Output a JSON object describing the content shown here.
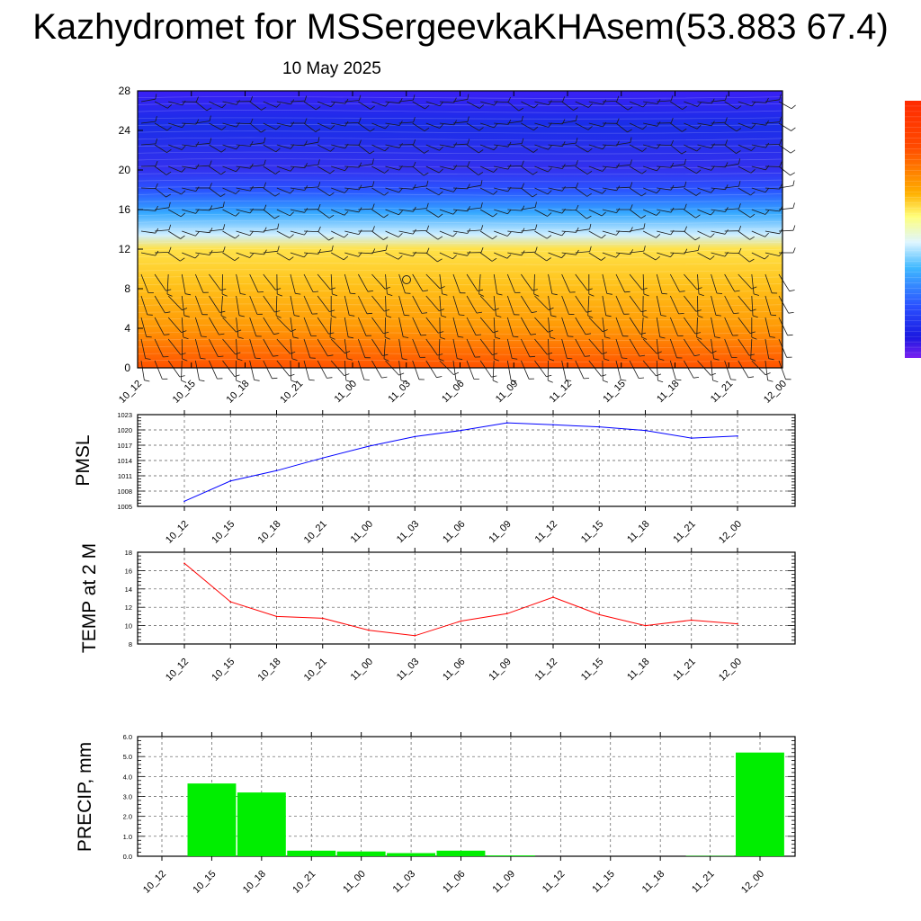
{
  "title": "Kazhydromet for MSSergeevkaKHAsem(53.883 67.4)",
  "date": "10 May 2025",
  "colors": {
    "pmsl_line": "#0000ff",
    "temp_line": "#ff0000",
    "precip_bar": "#00ee00",
    "cross_section_top": "#2a10f0",
    "cross_section_bottom": "#ff4a00"
  },
  "chart_data": [
    {
      "type": "heatmap",
      "name": "cross-section",
      "categories": [
        "10_12",
        "10_15",
        "10_18",
        "10_21",
        "11_00",
        "11_03",
        "11_06",
        "11_09",
        "11_12",
        "11_15",
        "11_18",
        "11_21",
        "12_00"
      ],
      "yticks": [
        "0",
        "4",
        "8",
        "12",
        "16",
        "20",
        "24",
        "28"
      ],
      "ylim": [
        0,
        28
      ],
      "overlay": "wind barbs",
      "colorbar": "purple-blue-cyan-yellow-orange-red"
    },
    {
      "type": "line",
      "name": "pmsl",
      "ylabel": "PMSL",
      "categories": [
        "10_12",
        "10_15",
        "10_18",
        "10_21",
        "11_00",
        "11_03",
        "11_06",
        "11_09",
        "11_12",
        "11_15",
        "11_18",
        "11_21",
        "12_00"
      ],
      "values": [
        1006,
        1010,
        1012,
        1014.5,
        1016.8,
        1018.7,
        1019.9,
        1021.4,
        1021,
        1020.6,
        1019.9,
        1018.4,
        1018.8
      ],
      "yticks": [
        "1005",
        "1008",
        "1011",
        "1014",
        "1017",
        "1020",
        "1023"
      ],
      "ylim": [
        1005,
        1023
      ],
      "grid": true
    },
    {
      "type": "line",
      "name": "temp-2m",
      "ylabel": "TEMP at 2 M",
      "categories": [
        "10_12",
        "10_15",
        "10_18",
        "10_21",
        "11_00",
        "11_03",
        "11_06",
        "11_09",
        "11_12",
        "11_15",
        "11_18",
        "11_21",
        "12_00"
      ],
      "values": [
        16.8,
        12.6,
        11,
        10.8,
        9.5,
        8.9,
        10.5,
        11.3,
        13.1,
        11.2,
        10,
        10.6,
        10.2
      ],
      "yticks": [
        "8",
        "10",
        "12",
        "14",
        "16",
        "18"
      ],
      "ylim": [
        8,
        18
      ],
      "grid": true
    },
    {
      "type": "bar",
      "name": "precip",
      "ylabel": "PRECIP, mm",
      "categories": [
        "10_12",
        "10_15",
        "10_18",
        "10_21",
        "11_00",
        "11_03",
        "11_06",
        "11_09",
        "11_12",
        "11_15",
        "11_18",
        "11_21",
        "12_00"
      ],
      "values": [
        0,
        3.65,
        3.2,
        0.28,
        0.24,
        0.16,
        0.28,
        0.04,
        0,
        0,
        0,
        0.02,
        5.2
      ],
      "yticks": [
        "0.0",
        "1.0",
        "2.0",
        "3.0",
        "4.0",
        "5.0",
        "6.0"
      ],
      "ylim": [
        0,
        6
      ],
      "grid": true
    }
  ]
}
